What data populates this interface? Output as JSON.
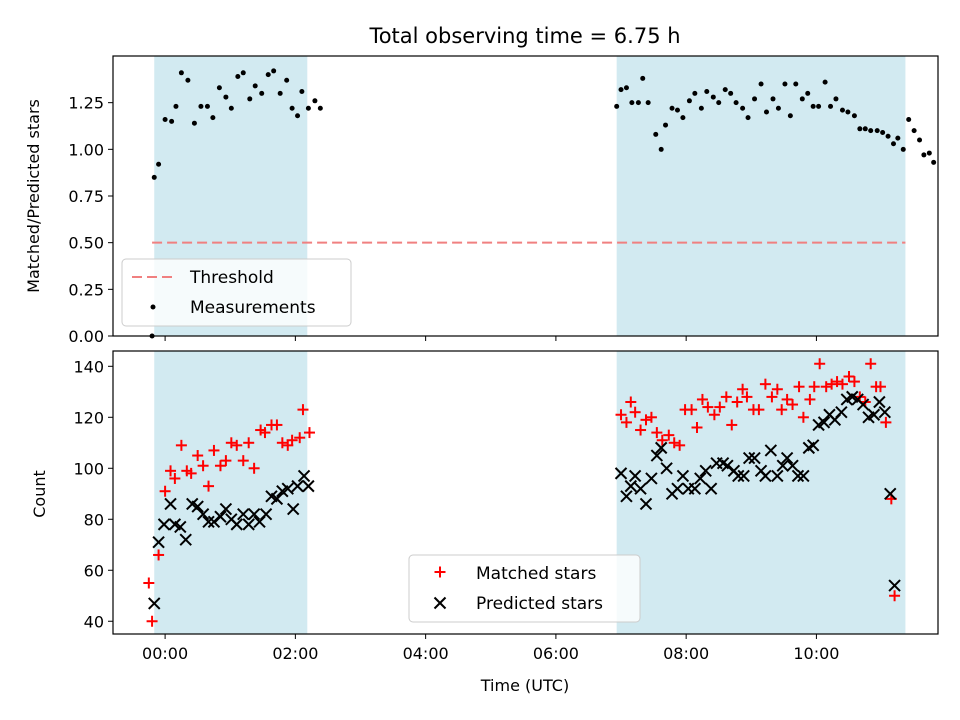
{
  "title": "Total observing time = 6.75 h",
  "xlabel": "Time (UTC)",
  "x_ticks": [
    "00:00",
    "02:00",
    "04:00",
    "06:00",
    "08:00",
    "10:00"
  ],
  "colors": {
    "shade": "#add8e6",
    "threshold": "#f08080",
    "matched": "#ff0000",
    "predicted": "#000000",
    "measurements": "#000000"
  },
  "chart_data": [
    {
      "type": "scatter",
      "ylabel": "Matched/Predicted stars",
      "ylim": [
        0,
        1.5
      ],
      "xlim": [
        "23:12",
        "11:52"
      ],
      "y_ticks": [
        "0.00",
        "0.25",
        "0.50",
        "0.75",
        "1.00",
        "1.25"
      ],
      "legend": {
        "location": "lower left",
        "entries": [
          "Threshold",
          "Measurements"
        ]
      },
      "shaded_intervals": [
        [
          "23:50",
          "02:11"
        ],
        [
          "06:56",
          "11:22"
        ]
      ],
      "threshold": {
        "y": 0.5,
        "x_range": [
          "23:48",
          "11:22"
        ]
      },
      "measurements": [
        [
          "23:48",
          0.0
        ],
        [
          "23:50",
          0.85
        ],
        [
          "23:54",
          0.92
        ],
        [
          "00:00",
          1.16
        ],
        [
          "00:06",
          1.15
        ],
        [
          "00:10",
          1.23
        ],
        [
          "00:15",
          1.41
        ],
        [
          "00:21",
          1.37
        ],
        [
          "00:27",
          1.14
        ],
        [
          "00:33",
          1.23
        ],
        [
          "00:39",
          1.23
        ],
        [
          "00:44",
          1.17
        ],
        [
          "00:50",
          1.33
        ],
        [
          "00:56",
          1.28
        ],
        [
          "01:01",
          1.22
        ],
        [
          "01:07",
          1.39
        ],
        [
          "01:12",
          1.41
        ],
        [
          "01:18",
          1.27
        ],
        [
          "01:23",
          1.34
        ],
        [
          "01:29",
          1.3
        ],
        [
          "01:35",
          1.4
        ],
        [
          "01:40",
          1.42
        ],
        [
          "01:46",
          1.3
        ],
        [
          "01:52",
          1.37
        ],
        [
          "01:57",
          1.22
        ],
        [
          "02:02",
          1.18
        ],
        [
          "02:06",
          1.31
        ],
        [
          "02:12",
          1.22
        ],
        [
          "02:18",
          1.26
        ],
        [
          "02:23",
          1.22
        ],
        [
          "06:56",
          1.23
        ],
        [
          "07:00",
          1.32
        ],
        [
          "07:05",
          1.33
        ],
        [
          "07:10",
          1.25
        ],
        [
          "07:16",
          1.25
        ],
        [
          "07:20",
          1.38
        ],
        [
          "07:25",
          1.25
        ],
        [
          "07:32",
          1.08
        ],
        [
          "07:37",
          1.0
        ],
        [
          "07:41",
          1.13
        ],
        [
          "07:47",
          1.22
        ],
        [
          "07:52",
          1.21
        ],
        [
          "07:57",
          1.17
        ],
        [
          "08:03",
          1.26
        ],
        [
          "08:08",
          1.3
        ],
        [
          "08:14",
          1.22
        ],
        [
          "08:19",
          1.31
        ],
        [
          "08:25",
          1.28
        ],
        [
          "08:30",
          1.25
        ],
        [
          "08:36",
          1.32
        ],
        [
          "08:41",
          1.3
        ],
        [
          "08:46",
          1.25
        ],
        [
          "08:52",
          1.22
        ],
        [
          "08:57",
          1.17
        ],
        [
          "09:03",
          1.27
        ],
        [
          "09:09",
          1.35
        ],
        [
          "09:14",
          1.2
        ],
        [
          "09:20",
          1.27
        ],
        [
          "09:25",
          1.22
        ],
        [
          "09:31",
          1.35
        ],
        [
          "09:36",
          1.18
        ],
        [
          "09:41",
          1.35
        ],
        [
          "09:47",
          1.27
        ],
        [
          "09:52",
          1.3
        ],
        [
          "09:57",
          1.23
        ],
        [
          "10:02",
          1.23
        ],
        [
          "10:08",
          1.36
        ],
        [
          "10:13",
          1.23
        ],
        [
          "10:18",
          1.27
        ],
        [
          "10:24",
          1.21
        ],
        [
          "10:29",
          1.2
        ],
        [
          "10:35",
          1.18
        ],
        [
          "10:40",
          1.11
        ],
        [
          "10:45",
          1.11
        ],
        [
          "10:50",
          1.1
        ],
        [
          "10:56",
          1.1
        ],
        [
          "11:01",
          1.09
        ],
        [
          "11:06",
          1.07
        ],
        [
          "11:11",
          1.03
        ],
        [
          "11:15",
          1.06
        ],
        [
          "11:20",
          1.0
        ],
        [
          "11:25",
          1.16
        ],
        [
          "11:30",
          1.1
        ],
        [
          "11:35",
          1.05
        ],
        [
          "11:39",
          0.97
        ],
        [
          "11:44",
          0.98
        ],
        [
          "11:48",
          0.93
        ]
      ]
    },
    {
      "type": "scatter",
      "ylabel": "Count",
      "ylim": [
        35,
        146
      ],
      "xlim": [
        "23:12",
        "11:52"
      ],
      "y_ticks": [
        "40",
        "60",
        "80",
        "100",
        "120",
        "140"
      ],
      "legend": {
        "location": "lower center",
        "entries": [
          "Matched stars",
          "Predicted stars"
        ]
      },
      "shaded_intervals": [
        [
          "23:50",
          "02:11"
        ],
        [
          "06:56",
          "11:22"
        ]
      ],
      "series": [
        {
          "name": "Matched stars",
          "points": [
            [
              "23:45",
              55
            ],
            [
              "23:48",
              40
            ],
            [
              "23:54",
              66
            ],
            [
              "00:00",
              91
            ],
            [
              "00:05",
              99
            ],
            [
              "00:09",
              96
            ],
            [
              "00:15",
              109
            ],
            [
              "00:20",
              99
            ],
            [
              "00:24",
              98
            ],
            [
              "00:30",
              105
            ],
            [
              "00:35",
              101
            ],
            [
              "00:40",
              93
            ],
            [
              "00:45",
              107
            ],
            [
              "00:51",
              101
            ],
            [
              "00:56",
              103
            ],
            [
              "01:01",
              110
            ],
            [
              "01:06",
              109
            ],
            [
              "01:12",
              103
            ],
            [
              "01:17",
              110
            ],
            [
              "01:22",
              100
            ],
            [
              "01:28",
              115
            ],
            [
              "01:32",
              114
            ],
            [
              "01:38",
              117
            ],
            [
              "01:43",
              117
            ],
            [
              "01:48",
              110
            ],
            [
              "01:53",
              109
            ],
            [
              "01:57",
              111
            ],
            [
              "02:04",
              112
            ],
            [
              "02:07",
              123
            ],
            [
              "02:13",
              114
            ],
            [
              "07:00",
              121
            ],
            [
              "07:05",
              118
            ],
            [
              "07:09",
              126
            ],
            [
              "07:13",
              122
            ],
            [
              "07:18",
              115
            ],
            [
              "07:23",
              119
            ],
            [
              "07:28",
              120
            ],
            [
              "07:33",
              114
            ],
            [
              "07:38",
              111
            ],
            [
              "07:44",
              113
            ],
            [
              "07:49",
              110
            ],
            [
              "07:54",
              109
            ],
            [
              "07:59",
              123
            ],
            [
              "08:05",
              123
            ],
            [
              "08:10",
              116
            ],
            [
              "08:15",
              127
            ],
            [
              "08:20",
              124
            ],
            [
              "08:26",
              121
            ],
            [
              "08:31",
              124
            ],
            [
              "08:37",
              128
            ],
            [
              "08:42",
              117
            ],
            [
              "08:47",
              126
            ],
            [
              "08:52",
              131
            ],
            [
              "08:56",
              128
            ],
            [
              "09:02",
              123
            ],
            [
              "09:07",
              123
            ],
            [
              "09:13",
              133
            ],
            [
              "09:19",
              128
            ],
            [
              "09:24",
              131
            ],
            [
              "09:28",
              123
            ],
            [
              "09:33",
              127
            ],
            [
              "09:38",
              125
            ],
            [
              "09:44",
              132
            ],
            [
              "09:48",
              120
            ],
            [
              "09:54",
              127
            ],
            [
              "09:58",
              132
            ],
            [
              "10:03",
              141
            ],
            [
              "10:09",
              132
            ],
            [
              "10:14",
              133
            ],
            [
              "10:19",
              134
            ],
            [
              "10:24",
              133
            ],
            [
              "10:30",
              136
            ],
            [
              "10:35",
              134
            ],
            [
              "10:40",
              128
            ],
            [
              "10:45",
              126
            ],
            [
              "10:50",
              141
            ],
            [
              "10:55",
              132
            ],
            [
              "10:59",
              132
            ],
            [
              "11:04",
              118
            ],
            [
              "11:09",
              88
            ],
            [
              "11:12",
              50
            ]
          ]
        },
        {
          "name": "Predicted stars",
          "points": [
            [
              "23:50",
              47
            ],
            [
              "23:54",
              71
            ],
            [
              "23:59",
              78
            ],
            [
              "00:05",
              86
            ],
            [
              "00:09",
              78
            ],
            [
              "00:14",
              77
            ],
            [
              "00:19",
              72
            ],
            [
              "00:25",
              86
            ],
            [
              "00:30",
              85
            ],
            [
              "00:35",
              82
            ],
            [
              "00:40",
              79
            ],
            [
              "00:45",
              79
            ],
            [
              "00:51",
              81
            ],
            [
              "00:56",
              84
            ],
            [
              "01:01",
              80
            ],
            [
              "01:06",
              78
            ],
            [
              "01:12",
              82
            ],
            [
              "01:17",
              78
            ],
            [
              "01:22",
              82
            ],
            [
              "01:27",
              79
            ],
            [
              "01:33",
              82
            ],
            [
              "01:38",
              89
            ],
            [
              "01:43",
              88
            ],
            [
              "01:48",
              91
            ],
            [
              "01:53",
              92
            ],
            [
              "01:58",
              84
            ],
            [
              "02:02",
              93
            ],
            [
              "02:08",
              97
            ],
            [
              "02:12",
              93
            ],
            [
              "07:00",
              98
            ],
            [
              "07:05",
              89
            ],
            [
              "07:09",
              93
            ],
            [
              "07:13",
              97
            ],
            [
              "07:18",
              92
            ],
            [
              "07:23",
              86
            ],
            [
              "07:28",
              96
            ],
            [
              "07:33",
              105
            ],
            [
              "07:37",
              108
            ],
            [
              "07:42",
              100
            ],
            [
              "07:47",
              90
            ],
            [
              "07:52",
              92
            ],
            [
              "07:57",
              97
            ],
            [
              "08:02",
              92
            ],
            [
              "08:08",
              92
            ],
            [
              "08:13",
              96
            ],
            [
              "08:18",
              99
            ],
            [
              "08:23",
              92
            ],
            [
              "08:28",
              102
            ],
            [
              "08:34",
              102
            ],
            [
              "08:38",
              101
            ],
            [
              "08:44",
              99
            ],
            [
              "08:48",
              97
            ],
            [
              "08:53",
              97
            ],
            [
              "08:58",
              104
            ],
            [
              "09:03",
              104
            ],
            [
              "09:09",
              99
            ],
            [
              "09:13",
              97
            ],
            [
              "09:18",
              107
            ],
            [
              "09:24",
              97
            ],
            [
              "09:29",
              101
            ],
            [
              "09:33",
              104
            ],
            [
              "09:38",
              101
            ],
            [
              "09:43",
              97
            ],
            [
              "09:48",
              97
            ],
            [
              "09:53",
              108
            ],
            [
              "09:57",
              109
            ],
            [
              "10:02",
              117
            ],
            [
              "10:07",
              118
            ],
            [
              "10:12",
              121
            ],
            [
              "10:17",
              119
            ],
            [
              "10:23",
              122
            ],
            [
              "10:28",
              127
            ],
            [
              "10:33",
              128
            ],
            [
              "10:38",
              127
            ],
            [
              "10:43",
              125
            ],
            [
              "10:48",
              120
            ],
            [
              "10:53",
              121
            ],
            [
              "10:58",
              126
            ],
            [
              "11:03",
              122
            ],
            [
              "11:08",
              90
            ],
            [
              "11:12",
              54
            ]
          ]
        }
      ]
    }
  ]
}
